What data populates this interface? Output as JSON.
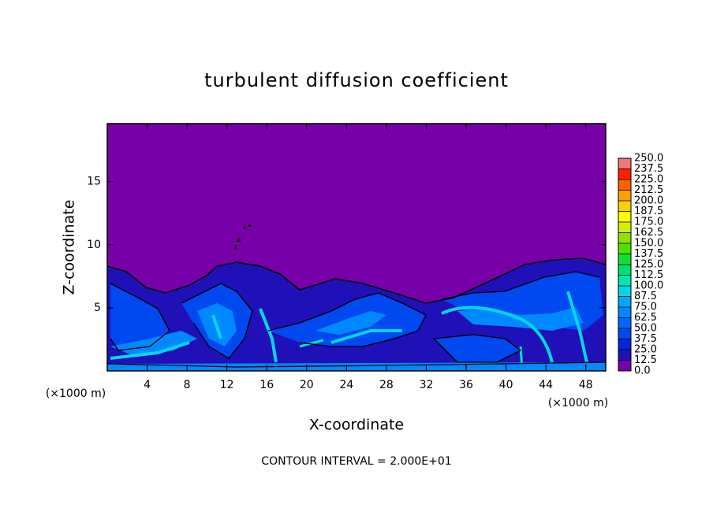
{
  "chart_data": {
    "type": "contour",
    "title": "turbulent diffusion coefficient",
    "x_label": "X-coordinate",
    "y_label": "Z-coordinate",
    "x_unit_label": "(×1000 m)",
    "annotation": "CONTOUR INTERVAL = 2.000E+01",
    "xlim": [
      0,
      50
    ],
    "ylim": [
      0,
      19.6
    ],
    "xticks": [
      4,
      8,
      12,
      16,
      20,
      24,
      28,
      32,
      36,
      40,
      44,
      48
    ],
    "yticks": [
      5,
      10,
      15
    ],
    "colorbar": {
      "clim": [
        0,
        250
      ],
      "ticks": [
        {
          "value": 0,
          "label": "0.0"
        },
        {
          "value": 12.5,
          "label": "12.5"
        },
        {
          "value": 25,
          "label": "25.0"
        },
        {
          "value": 37.5,
          "label": "37.5"
        },
        {
          "value": 50,
          "label": "50.0"
        },
        {
          "value": 62.5,
          "label": "62.5"
        },
        {
          "value": 75,
          "label": "75.0"
        },
        {
          "value": 87.5,
          "label": "87.5"
        },
        {
          "value": 100,
          "label": "100.0"
        },
        {
          "value": 112.5,
          "label": "112.5"
        },
        {
          "value": 125,
          "label": "125.0"
        },
        {
          "value": 137.5,
          "label": "137.5"
        },
        {
          "value": 150,
          "label": "150.0"
        },
        {
          "value": 162.5,
          "label": "162.5"
        },
        {
          "value": 175,
          "label": "175.0"
        },
        {
          "value": 187.5,
          "label": "187.5"
        },
        {
          "value": 200,
          "label": "200.0"
        },
        {
          "value": 212.5,
          "label": "212.5"
        },
        {
          "value": 225,
          "label": "225.0"
        },
        {
          "value": 237.5,
          "label": "237.5"
        },
        {
          "value": 250,
          "label": "250.0"
        }
      ],
      "colors": [
        "#7800a8",
        "#2010b8",
        "#0028d8",
        "#0048f0",
        "#0068ff",
        "#0088ff",
        "#00a8ff",
        "#00d8e8",
        "#00e8b0",
        "#00e070",
        "#10e030",
        "#50e000",
        "#90e000",
        "#d0f000",
        "#ffff00",
        "#ffd000",
        "#ffa000",
        "#ff6000",
        "#ff2000",
        "#f07878"
      ]
    }
  }
}
